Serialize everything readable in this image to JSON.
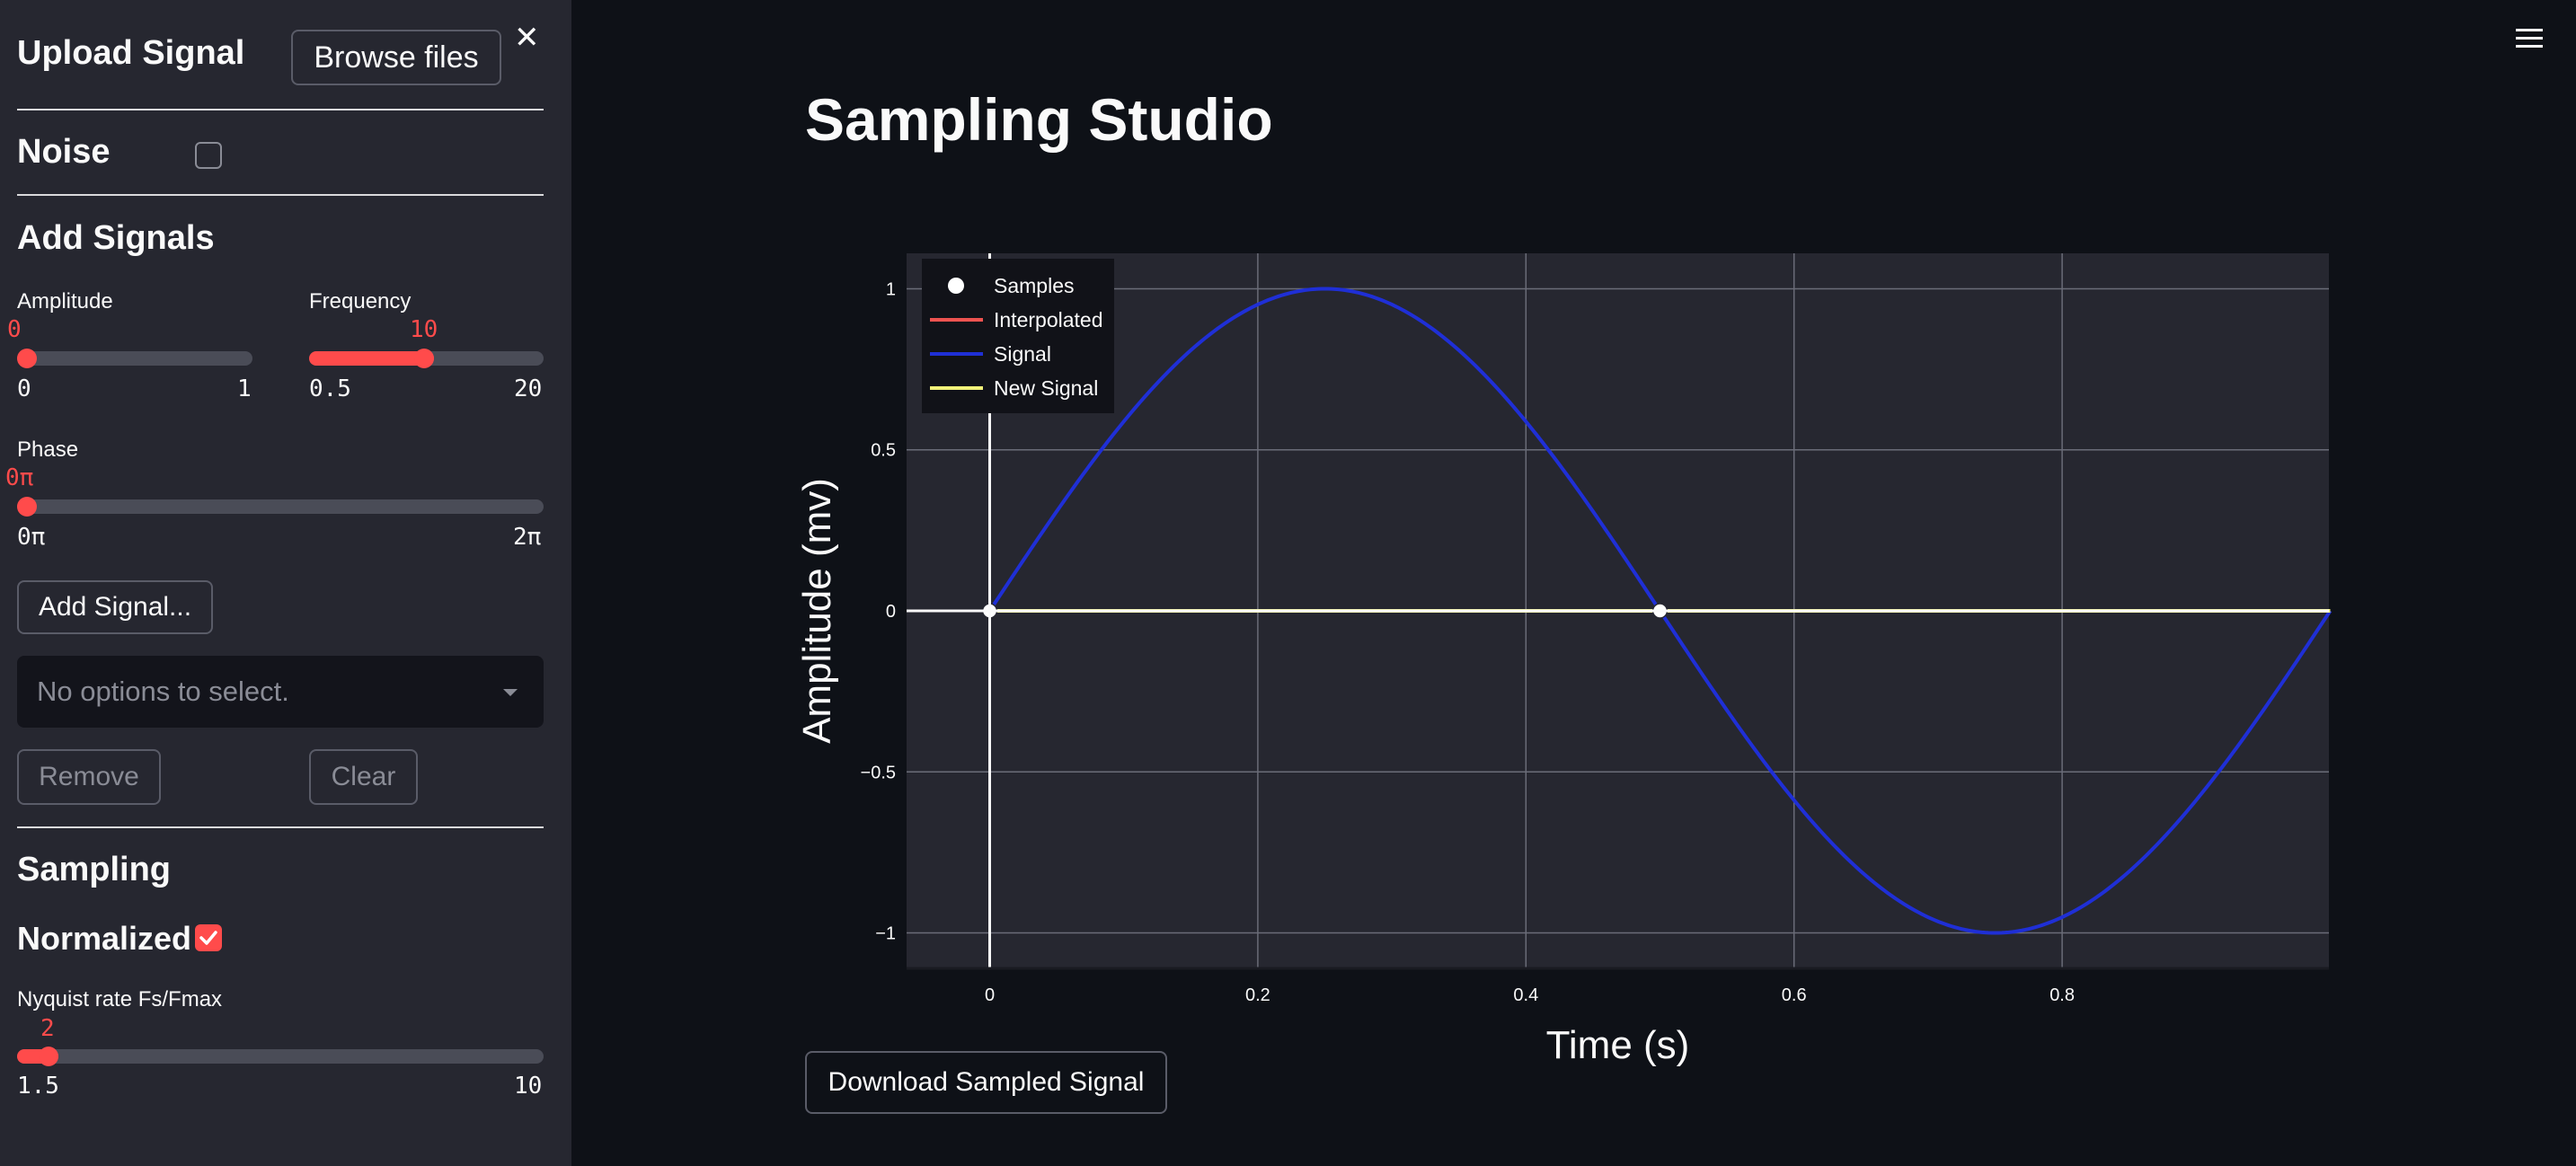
{
  "sidebar": {
    "upload_title": "Upload Signal",
    "browse_label": "Browse files",
    "close_symbol": "✕",
    "noise_label": "Noise",
    "noise_checked": false,
    "add_signals_title": "Add Signals",
    "amplitude": {
      "label": "Amplitude",
      "value": "0",
      "min": "0",
      "max": "1",
      "fraction": 0.0
    },
    "frequency": {
      "label": "Frequency",
      "value": "10",
      "min": "0.5",
      "max": "20",
      "fraction": 0.487
    },
    "phase": {
      "label": "Phase",
      "value": "0π",
      "min": "0π",
      "max": "2π",
      "fraction": 0.0
    },
    "add_signal_label": "Add Signal...",
    "select_placeholder": "No options to select.",
    "remove_label": "Remove",
    "clear_label": "Clear",
    "sampling_title": "Sampling",
    "normalized_label": "Normalized",
    "normalized_checked": true,
    "nyquist": {
      "label": "Nyquist rate Fs/Fmax",
      "value": "2",
      "min": "1.5",
      "max": "10",
      "fraction": 0.059
    }
  },
  "header": {
    "menu_icon": "hamburger-menu-icon"
  },
  "main": {
    "title": "Sampling Studio",
    "download_label": "Download Sampled Signal"
  },
  "colors": {
    "accent": "#ff4b4b",
    "signal": "#1f2fd6",
    "new_signal": "#f2f27a",
    "interpolated": "#ef5350",
    "samples": "#ffffff"
  },
  "chart_data": {
    "type": "line",
    "xlabel": "Time (s)",
    "ylabel": "Amplitude (mv)",
    "xlim": [
      -0.062,
      0.999
    ],
    "ylim": [
      -1.11,
      1.11
    ],
    "xticks": [
      "0",
      "0.2",
      "0.4",
      "0.6",
      "0.8"
    ],
    "xtick_values": [
      0,
      0.2,
      0.4,
      0.6,
      0.8
    ],
    "yticks": [
      "1",
      "0.5",
      "0",
      "−0.5",
      "−1"
    ],
    "ytick_values": [
      1,
      0.5,
      0,
      -0.5,
      -1
    ],
    "grid": true,
    "legend_position": "top-left",
    "legend": [
      "Samples",
      "Interpolated",
      "Signal",
      "New Signal"
    ],
    "series": [
      {
        "name": "Signal",
        "function": "sin(2*pi*t)",
        "x_range": [
          0,
          1
        ],
        "color": "#1f2fd6"
      },
      {
        "name": "New Signal",
        "x": [
          0,
          1
        ],
        "y": [
          0,
          0
        ],
        "color": "#f2f27a"
      },
      {
        "name": "Interpolated",
        "x": [],
        "y": [],
        "color": "#ef5350"
      },
      {
        "name": "Samples",
        "x": [
          0,
          0.5
        ],
        "y": [
          0,
          0
        ],
        "color": "#ffffff"
      }
    ]
  }
}
